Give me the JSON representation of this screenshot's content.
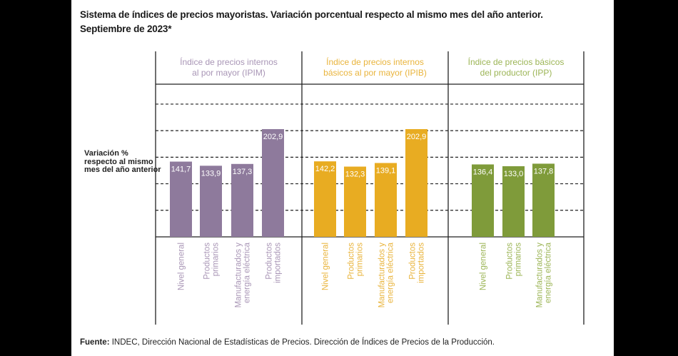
{
  "title_line1": "Sistema de índices de precios mayoristas. Variación porcentual respecto al mismo mes del año anterior.",
  "title_line2": "Septiembre de 2023*",
  "source_label": "Fuente:",
  "source_text": " INDEC, Dirección Nacional de Estadísticas de Precios. Dirección de Índices de Precios de la Producción.",
  "chart_data": {
    "type": "bar",
    "ylabel": "Variación % respecto al mismo mes del año anterior",
    "ylim": [
      0,
      287.5
    ],
    "grid": true,
    "gridlines": [
      50,
      100,
      150,
      200,
      250
    ],
    "groups": [
      {
        "name": "Índice de precios internos al por mayor (IPIM)",
        "name_lines": [
          "Índice de precios internos",
          "al por mayor (IPIM)"
        ],
        "color": "#8e7a9c",
        "label_color": "#a996b6",
        "categories": [
          [
            "Nivel general"
          ],
          [
            "Productos",
            "primarios"
          ],
          [
            "Manufacturados y",
            "energía eléctrica"
          ],
          [
            "Productos",
            "importados"
          ]
        ],
        "values": [
          141.7,
          133.9,
          137.3,
          202.9
        ],
        "value_labels": [
          "141,7",
          "133,9",
          "137,3",
          "202,9"
        ]
      },
      {
        "name": "Índice de precios internos básicos al por mayor (IPIB)",
        "name_lines": [
          "Índice de precios internos",
          "básicos al por mayor (IPIB)"
        ],
        "color": "#e8ac22",
        "label_color": "#e9b43c",
        "categories": [
          [
            "Nivel general"
          ],
          [
            "Productos",
            "primarios"
          ],
          [
            "Manufacturados y",
            "energía eléctrica"
          ],
          [
            "Productos",
            "importados"
          ]
        ],
        "values": [
          142.2,
          132.3,
          139.1,
          202.9
        ],
        "value_labels": [
          "142,2",
          "132,3",
          "139,1",
          "202,9"
        ]
      },
      {
        "name": "Índice de precios básicos del productor (IPP)",
        "name_lines": [
          "Índice de precios básicos",
          "del productor (IPP)"
        ],
        "color": "#7f9b3a",
        "label_color": "#9cb556",
        "categories": [
          [
            "Nivel general"
          ],
          [
            "Productos",
            "primarios"
          ],
          [
            "Manufacturados y",
            "energía eléctrica"
          ]
        ],
        "values": [
          136.4,
          133.0,
          137.8
        ],
        "value_labels": [
          "136,4",
          "133,0",
          "137,8"
        ]
      }
    ]
  }
}
